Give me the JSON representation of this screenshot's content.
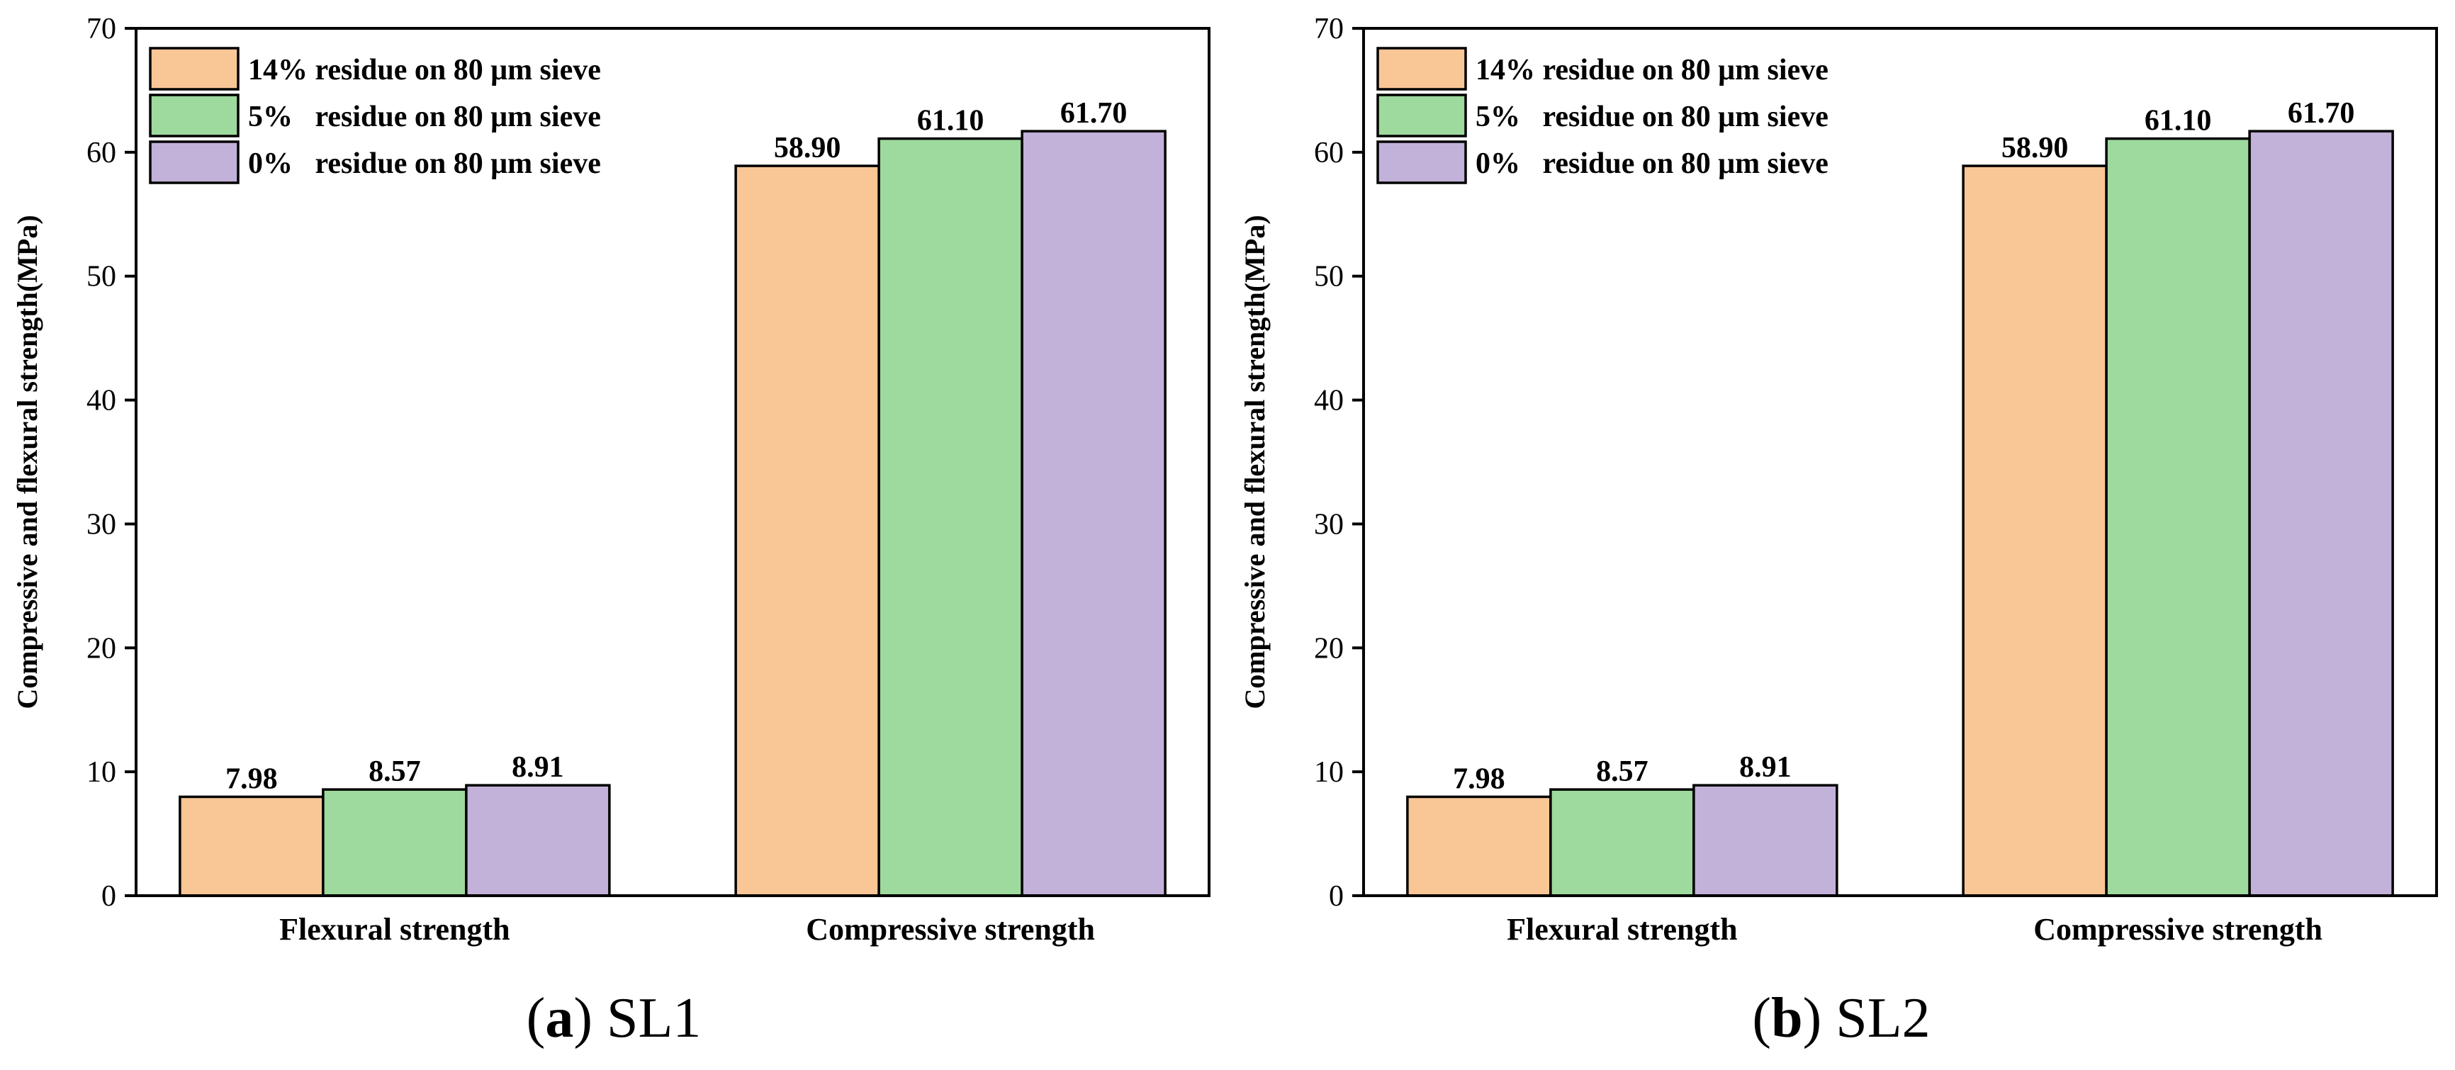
{
  "chart_data": [
    {
      "type": "bar",
      "panel_letter": "a",
      "panel_name": "SL1",
      "categories": [
        "Flexural strength",
        "Compressive strength"
      ],
      "series": [
        {
          "name": "14% residue on 80 μm sieve",
          "values": [
            7.98,
            58.9
          ],
          "labels": [
            "7.98",
            "58.90"
          ],
          "color": "#F9C696"
        },
        {
          "name": "5%   residue on 80 μm sieve",
          "values": [
            8.57,
            61.1
          ],
          "labels": [
            "8.57",
            "61.10"
          ],
          "color": "#9ED99E"
        },
        {
          "name": "0%   residue on 80 μm sieve",
          "values": [
            8.91,
            61.7
          ],
          "labels": [
            "8.91",
            "61.70"
          ],
          "color": "#C2B1D8"
        }
      ],
      "ylabel": "Compressive and flexural strength(MPa)",
      "xlabel": "",
      "ylim": [
        0,
        70
      ],
      "yticks": [
        0,
        10,
        20,
        30,
        40,
        50,
        60,
        70
      ],
      "legend_position": "top-left",
      "grid": false
    },
    {
      "type": "bar",
      "panel_letter": "b",
      "panel_name": "SL2",
      "categories": [
        "Flexural strength",
        "Compressive strength"
      ],
      "series": [
        {
          "name": "14% residue on 80 μm sieve",
          "values": [
            7.98,
            58.9
          ],
          "labels": [
            "7.98",
            "58.90"
          ],
          "color": "#F9C696"
        },
        {
          "name": "5%   residue on 80 μm sieve",
          "values": [
            8.57,
            61.1
          ],
          "labels": [
            "8.57",
            "61.10"
          ],
          "color": "#9ED99E"
        },
        {
          "name": "0%   residue on 80 μm sieve",
          "values": [
            8.91,
            61.7
          ],
          "labels": [
            "8.91",
            "61.70"
          ],
          "color": "#C2B1D8"
        }
      ],
      "ylabel": "Compressive and flexural strength(MPa)",
      "xlabel": "",
      "ylim": [
        0,
        70
      ],
      "yticks": [
        0,
        10,
        20,
        30,
        40,
        50,
        60,
        70
      ],
      "legend_position": "top-left",
      "grid": false
    }
  ]
}
